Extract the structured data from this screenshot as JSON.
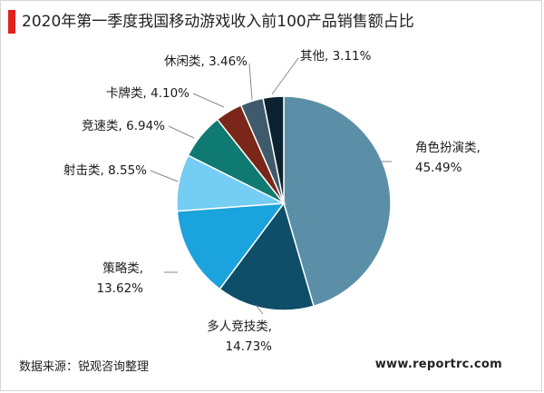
{
  "title": "2020年第一季度我国移动游戏收入前100产品销售额占比",
  "source": "数据来源：锐观咨询整理",
  "website": "www.reportrc.com",
  "chart_data": {
    "type": "pie",
    "start_angle_deg": 0,
    "direction": "clockwise",
    "slices": [
      {
        "category": "角色扮演类",
        "value": 45.49,
        "label": "45.49%",
        "color": "#5b8fa8"
      },
      {
        "category": "多人竞技类",
        "value": 14.73,
        "label": "14.73%",
        "color": "#0e4e68"
      },
      {
        "category": "策略类",
        "value": 13.62,
        "label": "13.62%",
        "color": "#1aa3dc"
      },
      {
        "category": "射击类",
        "value": 8.55,
        "label": "8.55%",
        "color": "#74cdf2"
      },
      {
        "category": "竞速类",
        "value": 6.94,
        "label": "6.94%",
        "color": "#0f7a72"
      },
      {
        "category": "卡牌类",
        "value": 4.1,
        "label": "4.10%",
        "color": "#7a2619"
      },
      {
        "category": "休闲类",
        "value": 3.46,
        "label": "3.46%",
        "color": "#3f5a6b"
      },
      {
        "category": "其他",
        "value": 3.11,
        "label": "3.11%",
        "color": "#0b2330"
      }
    ]
  }
}
